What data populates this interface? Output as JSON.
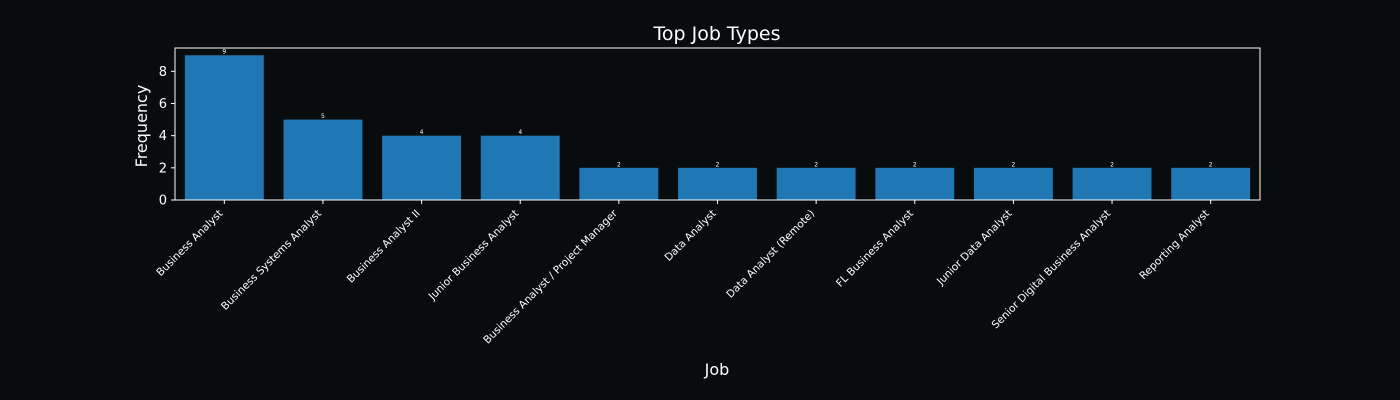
{
  "chart_data": {
    "type": "bar",
    "title": "Top Job Types",
    "xlabel": "Job",
    "ylabel": "Frequency",
    "categories": [
      "Business Analyst",
      "Business Systems Analyst",
      "Business Analyst II",
      "Junior Business Analyst",
      "Business Analyst / Project Manager",
      "Data Analyst",
      "Data Analyst (Remote)",
      "FL Business Analyst",
      "Junior Data Analyst",
      "Senior Digital Business Analyst",
      "Reporting Analyst"
    ],
    "values": [
      9,
      5,
      4,
      4,
      2,
      2,
      2,
      2,
      2,
      2,
      2
    ],
    "ylim": [
      0,
      9.45
    ],
    "yticks": [
      0,
      2,
      4,
      6,
      8
    ],
    "grid": false,
    "legend": "none",
    "colors": {
      "background": "#080c0e",
      "bar": "#1f77b4",
      "text": "#ffffff",
      "axes": "#ffffff"
    }
  }
}
